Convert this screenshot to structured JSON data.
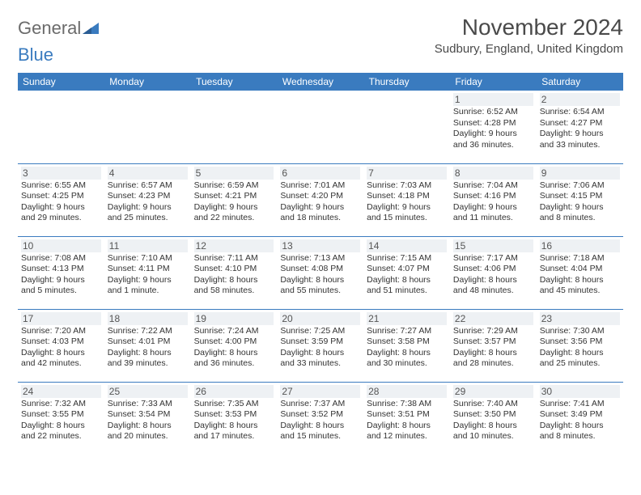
{
  "brand": {
    "part1": "General",
    "part2": "Blue"
  },
  "title": "November 2024",
  "location": "Sudbury, England, United Kingdom",
  "colors": {
    "header_bg": "#3a7bbf",
    "header_text": "#ffffff",
    "border": "#3a7bbf",
    "daynum_bg": "#eef1f4",
    "text": "#333333",
    "logo_gray": "#6b6b6b",
    "logo_blue": "#3a7bbf"
  },
  "daysOfWeek": [
    "Sunday",
    "Monday",
    "Tuesday",
    "Wednesday",
    "Thursday",
    "Friday",
    "Saturday"
  ],
  "weeks": [
    [
      {
        "num": "",
        "sunrise": "",
        "sunset": "",
        "daylight": ""
      },
      {
        "num": "",
        "sunrise": "",
        "sunset": "",
        "daylight": ""
      },
      {
        "num": "",
        "sunrise": "",
        "sunset": "",
        "daylight": ""
      },
      {
        "num": "",
        "sunrise": "",
        "sunset": "",
        "daylight": ""
      },
      {
        "num": "",
        "sunrise": "",
        "sunset": "",
        "daylight": ""
      },
      {
        "num": "1",
        "sunrise": "Sunrise: 6:52 AM",
        "sunset": "Sunset: 4:28 PM",
        "daylight": "Daylight: 9 hours and 36 minutes."
      },
      {
        "num": "2",
        "sunrise": "Sunrise: 6:54 AM",
        "sunset": "Sunset: 4:27 PM",
        "daylight": "Daylight: 9 hours and 33 minutes."
      }
    ],
    [
      {
        "num": "3",
        "sunrise": "Sunrise: 6:55 AM",
        "sunset": "Sunset: 4:25 PM",
        "daylight": "Daylight: 9 hours and 29 minutes."
      },
      {
        "num": "4",
        "sunrise": "Sunrise: 6:57 AM",
        "sunset": "Sunset: 4:23 PM",
        "daylight": "Daylight: 9 hours and 25 minutes."
      },
      {
        "num": "5",
        "sunrise": "Sunrise: 6:59 AM",
        "sunset": "Sunset: 4:21 PM",
        "daylight": "Daylight: 9 hours and 22 minutes."
      },
      {
        "num": "6",
        "sunrise": "Sunrise: 7:01 AM",
        "sunset": "Sunset: 4:20 PM",
        "daylight": "Daylight: 9 hours and 18 minutes."
      },
      {
        "num": "7",
        "sunrise": "Sunrise: 7:03 AM",
        "sunset": "Sunset: 4:18 PM",
        "daylight": "Daylight: 9 hours and 15 minutes."
      },
      {
        "num": "8",
        "sunrise": "Sunrise: 7:04 AM",
        "sunset": "Sunset: 4:16 PM",
        "daylight": "Daylight: 9 hours and 11 minutes."
      },
      {
        "num": "9",
        "sunrise": "Sunrise: 7:06 AM",
        "sunset": "Sunset: 4:15 PM",
        "daylight": "Daylight: 9 hours and 8 minutes."
      }
    ],
    [
      {
        "num": "10",
        "sunrise": "Sunrise: 7:08 AM",
        "sunset": "Sunset: 4:13 PM",
        "daylight": "Daylight: 9 hours and 5 minutes."
      },
      {
        "num": "11",
        "sunrise": "Sunrise: 7:10 AM",
        "sunset": "Sunset: 4:11 PM",
        "daylight": "Daylight: 9 hours and 1 minute."
      },
      {
        "num": "12",
        "sunrise": "Sunrise: 7:11 AM",
        "sunset": "Sunset: 4:10 PM",
        "daylight": "Daylight: 8 hours and 58 minutes."
      },
      {
        "num": "13",
        "sunrise": "Sunrise: 7:13 AM",
        "sunset": "Sunset: 4:08 PM",
        "daylight": "Daylight: 8 hours and 55 minutes."
      },
      {
        "num": "14",
        "sunrise": "Sunrise: 7:15 AM",
        "sunset": "Sunset: 4:07 PM",
        "daylight": "Daylight: 8 hours and 51 minutes."
      },
      {
        "num": "15",
        "sunrise": "Sunrise: 7:17 AM",
        "sunset": "Sunset: 4:06 PM",
        "daylight": "Daylight: 8 hours and 48 minutes."
      },
      {
        "num": "16",
        "sunrise": "Sunrise: 7:18 AM",
        "sunset": "Sunset: 4:04 PM",
        "daylight": "Daylight: 8 hours and 45 minutes."
      }
    ],
    [
      {
        "num": "17",
        "sunrise": "Sunrise: 7:20 AM",
        "sunset": "Sunset: 4:03 PM",
        "daylight": "Daylight: 8 hours and 42 minutes."
      },
      {
        "num": "18",
        "sunrise": "Sunrise: 7:22 AM",
        "sunset": "Sunset: 4:01 PM",
        "daylight": "Daylight: 8 hours and 39 minutes."
      },
      {
        "num": "19",
        "sunrise": "Sunrise: 7:24 AM",
        "sunset": "Sunset: 4:00 PM",
        "daylight": "Daylight: 8 hours and 36 minutes."
      },
      {
        "num": "20",
        "sunrise": "Sunrise: 7:25 AM",
        "sunset": "Sunset: 3:59 PM",
        "daylight": "Daylight: 8 hours and 33 minutes."
      },
      {
        "num": "21",
        "sunrise": "Sunrise: 7:27 AM",
        "sunset": "Sunset: 3:58 PM",
        "daylight": "Daylight: 8 hours and 30 minutes."
      },
      {
        "num": "22",
        "sunrise": "Sunrise: 7:29 AM",
        "sunset": "Sunset: 3:57 PM",
        "daylight": "Daylight: 8 hours and 28 minutes."
      },
      {
        "num": "23",
        "sunrise": "Sunrise: 7:30 AM",
        "sunset": "Sunset: 3:56 PM",
        "daylight": "Daylight: 8 hours and 25 minutes."
      }
    ],
    [
      {
        "num": "24",
        "sunrise": "Sunrise: 7:32 AM",
        "sunset": "Sunset: 3:55 PM",
        "daylight": "Daylight: 8 hours and 22 minutes."
      },
      {
        "num": "25",
        "sunrise": "Sunrise: 7:33 AM",
        "sunset": "Sunset: 3:54 PM",
        "daylight": "Daylight: 8 hours and 20 minutes."
      },
      {
        "num": "26",
        "sunrise": "Sunrise: 7:35 AM",
        "sunset": "Sunset: 3:53 PM",
        "daylight": "Daylight: 8 hours and 17 minutes."
      },
      {
        "num": "27",
        "sunrise": "Sunrise: 7:37 AM",
        "sunset": "Sunset: 3:52 PM",
        "daylight": "Daylight: 8 hours and 15 minutes."
      },
      {
        "num": "28",
        "sunrise": "Sunrise: 7:38 AM",
        "sunset": "Sunset: 3:51 PM",
        "daylight": "Daylight: 8 hours and 12 minutes."
      },
      {
        "num": "29",
        "sunrise": "Sunrise: 7:40 AM",
        "sunset": "Sunset: 3:50 PM",
        "daylight": "Daylight: 8 hours and 10 minutes."
      },
      {
        "num": "30",
        "sunrise": "Sunrise: 7:41 AM",
        "sunset": "Sunset: 3:49 PM",
        "daylight": "Daylight: 8 hours and 8 minutes."
      }
    ]
  ]
}
